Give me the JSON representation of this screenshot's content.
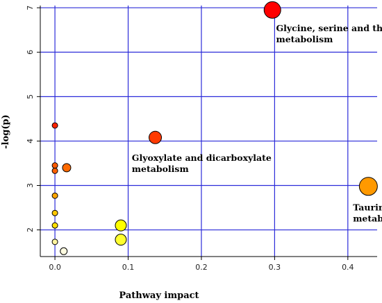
{
  "chart_data": {
    "type": "scatter",
    "xlabel": "Pathway impact",
    "ylabel": "-log(p)",
    "xlim": [
      -0.02,
      0.44
    ],
    "ylim": [
      1.4,
      7.05
    ],
    "x_ticks": [
      0.0,
      0.1,
      0.2,
      0.3,
      0.4
    ],
    "x_tick_labels": [
      "0.0",
      "0.1",
      "0.2",
      "0.3",
      "0.4"
    ],
    "y_ticks": [
      2,
      3,
      4,
      5,
      6,
      7
    ],
    "y_tick_labels": [
      "2",
      "3",
      "4",
      "5",
      "6",
      "7"
    ],
    "grid": true,
    "grid_color": "#2b2bd9",
    "points": [
      {
        "x": 0.297,
        "y": 6.95,
        "r": 12,
        "color": "#ff0000"
      },
      {
        "x": 0.137,
        "y": 4.08,
        "r": 9,
        "color": "#ff3a00"
      },
      {
        "x": 0.428,
        "y": 2.98,
        "r": 13,
        "color": "#ff9900"
      },
      {
        "x": 0.0,
        "y": 4.35,
        "r": 4,
        "color": "#ff2200"
      },
      {
        "x": 0.0,
        "y": 3.45,
        "r": 4,
        "color": "#ff5a00"
      },
      {
        "x": 0.0,
        "y": 3.33,
        "r": 4,
        "color": "#ff6000"
      },
      {
        "x": 0.016,
        "y": 3.4,
        "r": 6,
        "color": "#ff6a00"
      },
      {
        "x": 0.0,
        "y": 2.77,
        "r": 4,
        "color": "#ffa500"
      },
      {
        "x": 0.0,
        "y": 2.38,
        "r": 4,
        "color": "#ffc800"
      },
      {
        "x": 0.0,
        "y": 2.1,
        "r": 4,
        "color": "#ffe000"
      },
      {
        "x": 0.0,
        "y": 1.73,
        "r": 4,
        "color": "#fff4a0"
      },
      {
        "x": 0.012,
        "y": 1.52,
        "r": 5,
        "color": "#fffce0"
      },
      {
        "x": 0.09,
        "y": 2.1,
        "r": 8,
        "color": "#ffff00"
      },
      {
        "x": 0.09,
        "y": 1.78,
        "r": 8,
        "color": "#ffff30"
      }
    ],
    "annotations": [
      {
        "lines": [
          "Glycine, serine and threonine",
          "metabolism"
        ],
        "x": 0.302,
        "y": 6.47
      },
      {
        "lines": [
          "Glyoxylate and dicarboxylate",
          "metabolism"
        ],
        "x": 0.105,
        "y": 3.55
      },
      {
        "lines": [
          "Taurine and hypotaurine",
          "metabolism"
        ],
        "x": 0.407,
        "y": 2.44
      }
    ]
  }
}
